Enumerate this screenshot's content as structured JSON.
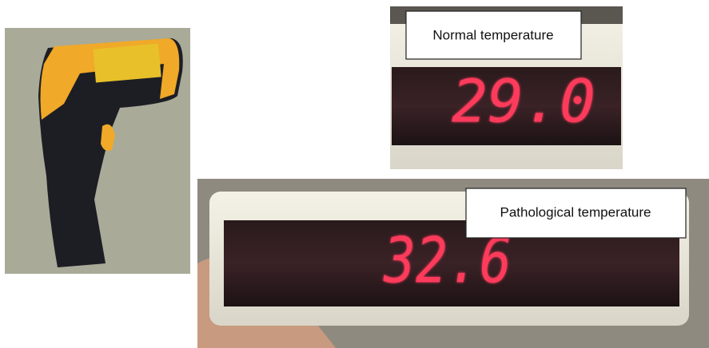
{
  "panels": [
    {
      "label": "Normal temperature",
      "reading": "29.0"
    },
    {
      "label": "Pathological temperature",
      "reading": "32.6"
    }
  ]
}
